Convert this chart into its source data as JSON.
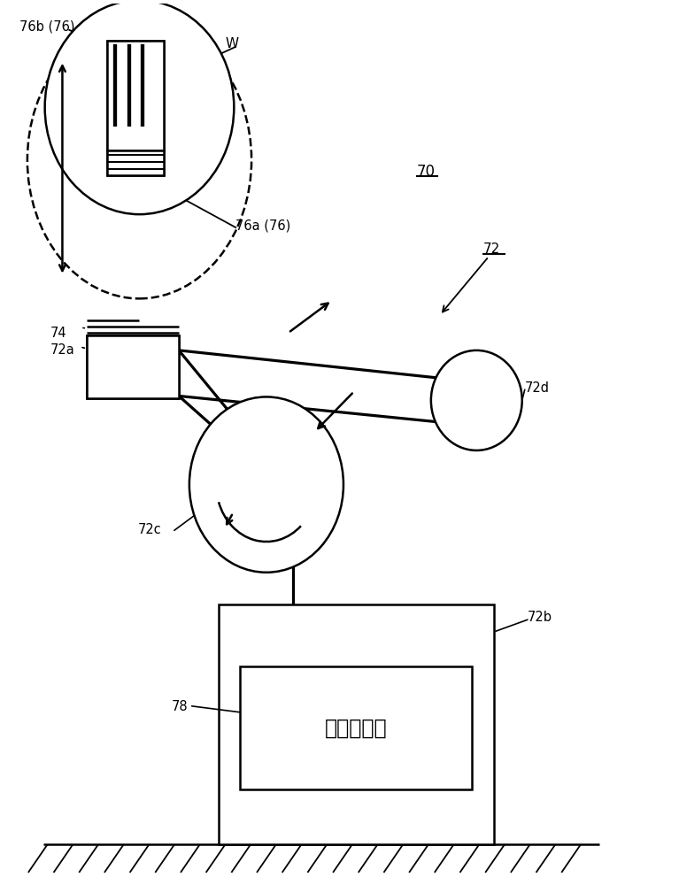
{
  "bg_color": "#ffffff",
  "line_color": "#000000",
  "lw": 1.8,
  "fig_w": 7.67,
  "fig_h": 10.0,
  "title": "70",
  "labels": {
    "76b": "76b (76)",
    "W": "W",
    "76a": "76a (76)",
    "74": "74",
    "72a": "72a",
    "72": "72",
    "72d": "72d",
    "72c": "72c",
    "72b": "72b",
    "78": "78",
    "box_text": "搞运控制部"
  }
}
